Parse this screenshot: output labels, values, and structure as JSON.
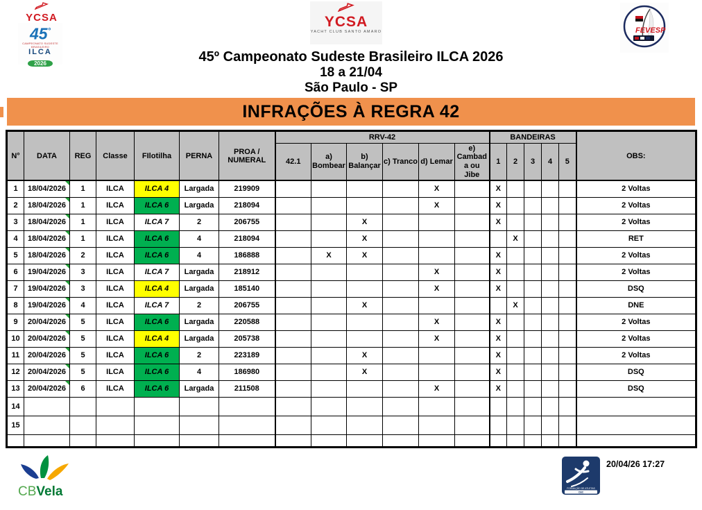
{
  "page": {
    "logos": {
      "ycsa_small": {
        "name": "YCSA"
      },
      "ilca45": {
        "number": "45",
        "degree": "°",
        "subtitle": "CAMPEONATO SUDESTE BRASILEIRO",
        "class_name": "ILCA",
        "year": "2026"
      },
      "ycsa_center": {
        "name": "YCSA",
        "subtitle": "YACHT CLUB SANTO AMARO"
      },
      "fevesp": {
        "name": "FEVESP"
      },
      "cbvela": {
        "cb": "CB",
        "vela": "Vela"
      },
      "athlete": {
        "line1": "FORMAÇÃO DE ATLETAS",
        "line2": "CBC"
      }
    },
    "title": {
      "line1": "45º Campeonato Sudeste Brasileiro ILCA 2026",
      "line2": "18 a 21/04",
      "line3": "São Paulo - SP"
    },
    "banner": "INFRAÇÕES À REGRA 42",
    "stamp": "20/04/26 17:27"
  },
  "colors": {
    "banner_orange": "#F0914C",
    "header_gray": "#C0C0C0",
    "fleet_green_bg": "#00B050",
    "fleet_green_text": "#FFFF00",
    "fleet_yellow_bg": "#FFFF00",
    "fleet_yellow_text": "#FF0000"
  },
  "table": {
    "columns": {
      "num": "N°",
      "data": "DATA",
      "reg": "REG",
      "classe": "Classe",
      "flotilha": "FIlotilha",
      "perna": "PERNA",
      "proa": "PROA /\nNUMERAL",
      "rrv_group": "RRV-42",
      "rrv": [
        "42.1",
        "a) Bombear",
        "b) Balançar",
        "c) Tranco",
        "d) Lemar",
        "e) Cambada ou Jibe"
      ],
      "bandeiras_group": "BANDEIRAS",
      "bandeiras": [
        "1",
        "2",
        "3",
        "4",
        "5"
      ],
      "obs": "OBS:"
    },
    "rows": [
      {
        "num": "1",
        "data": "18/04/2026",
        "reg": "1",
        "classe": "ILCA",
        "flotilha": "ILCA 4",
        "fleet": "yellow",
        "perna": "Largada",
        "proa": "219909",
        "rrv": [
          "",
          "",
          "",
          "",
          "X",
          ""
        ],
        "flags": [
          "X",
          "",
          "",
          "",
          ""
        ],
        "obs": "2 Voltas"
      },
      {
        "num": "2",
        "data": "18/04/2026",
        "reg": "1",
        "classe": "ILCA",
        "flotilha": "ILCA 6",
        "fleet": "green",
        "perna": "Largada",
        "proa": "218094",
        "rrv": [
          "",
          "",
          "",
          "",
          "X",
          ""
        ],
        "flags": [
          "X",
          "",
          "",
          "",
          ""
        ],
        "obs": "2 Voltas"
      },
      {
        "num": "3",
        "data": "18/04/2026",
        "reg": "1",
        "classe": "ILCA",
        "flotilha": "ILCA 7",
        "fleet": "plain",
        "perna": "2",
        "proa": "206755",
        "rrv": [
          "",
          "",
          "X",
          "",
          "",
          ""
        ],
        "flags": [
          "X",
          "",
          "",
          "",
          ""
        ],
        "obs": "2 Voltas"
      },
      {
        "num": "4",
        "data": "18/04/2026",
        "reg": "1",
        "classe": "ILCA",
        "flotilha": "ILCA 6",
        "fleet": "green",
        "perna": "4",
        "proa": "218094",
        "rrv": [
          "",
          "",
          "X",
          "",
          "",
          ""
        ],
        "flags": [
          "",
          "X",
          "",
          "",
          ""
        ],
        "obs": "RET"
      },
      {
        "num": "5",
        "data": "18/04/2026",
        "reg": "2",
        "classe": "ILCA",
        "flotilha": "ILCA 6",
        "fleet": "green",
        "perna": "4",
        "proa": "186888",
        "rrv": [
          "",
          "X",
          "X",
          "",
          "",
          ""
        ],
        "flags": [
          "X",
          "",
          "",
          "",
          ""
        ],
        "obs": "2 Voltas"
      },
      {
        "num": "6",
        "data": "19/04/2026",
        "reg": "3",
        "classe": "ILCA",
        "flotilha": "ILCA 7",
        "fleet": "plain",
        "perna": "Largada",
        "proa": "218912",
        "rrv": [
          "",
          "",
          "",
          "",
          "X",
          ""
        ],
        "flags": [
          "X",
          "",
          "",
          "",
          ""
        ],
        "obs": "2 Voltas"
      },
      {
        "num": "7",
        "data": "19/04/2026",
        "reg": "3",
        "classe": "ILCA",
        "flotilha": "ILCA 4",
        "fleet": "yellow",
        "perna": "Largada",
        "proa": "185140",
        "rrv": [
          "",
          "",
          "",
          "",
          "X",
          ""
        ],
        "flags": [
          "X",
          "",
          "",
          "",
          ""
        ],
        "obs": "DSQ"
      },
      {
        "num": "8",
        "data": "19/04/2026",
        "reg": "4",
        "classe": "ILCA",
        "flotilha": "ILCA 7",
        "fleet": "plain",
        "perna": "2",
        "proa": "206755",
        "rrv": [
          "",
          "",
          "X",
          "",
          "",
          ""
        ],
        "flags": [
          "",
          "X",
          "",
          "",
          ""
        ],
        "obs": "DNE"
      },
      {
        "num": "9",
        "data": "20/04/2026",
        "reg": "5",
        "classe": "ILCA",
        "flotilha": "ILCA 6",
        "fleet": "green",
        "perna": "Largada",
        "proa": "220588",
        "rrv": [
          "",
          "",
          "",
          "",
          "X",
          ""
        ],
        "flags": [
          "X",
          "",
          "",
          "",
          ""
        ],
        "obs": "2 Voltas"
      },
      {
        "num": "10",
        "data": "20/04/2026",
        "reg": "5",
        "classe": "ILCA",
        "flotilha": "ILCA 4",
        "fleet": "yellow",
        "perna": "Largada",
        "proa": "205738",
        "rrv": [
          "",
          "",
          "",
          "",
          "X",
          ""
        ],
        "flags": [
          "X",
          "",
          "",
          "",
          ""
        ],
        "obs": "2 Voltas"
      },
      {
        "num": "11",
        "data": "20/04/2026",
        "reg": "5",
        "classe": "ILCA",
        "flotilha": "ILCA 6",
        "fleet": "green",
        "perna": "2",
        "proa": "223189",
        "rrv": [
          "",
          "",
          "X",
          "",
          "",
          ""
        ],
        "flags": [
          "X",
          "",
          "",
          "",
          ""
        ],
        "obs": "2 Voltas"
      },
      {
        "num": "12",
        "data": "20/04/2026",
        "reg": "5",
        "classe": "ILCA",
        "flotilha": "ILCA 6",
        "fleet": "green",
        "perna": "4",
        "proa": "186980",
        "rrv": [
          "",
          "",
          "X",
          "",
          "",
          ""
        ],
        "flags": [
          "X",
          "",
          "",
          "",
          ""
        ],
        "obs": "DSQ"
      },
      {
        "num": "13",
        "data": "20/04/2026",
        "reg": "6",
        "classe": "ILCA",
        "flotilha": "ILCA 6",
        "fleet": "green",
        "perna": "Largada",
        "proa": "211508",
        "rrv": [
          "",
          "",
          "",
          "",
          "X",
          ""
        ],
        "flags": [
          "X",
          "",
          "",
          "",
          ""
        ],
        "obs": "DSQ"
      },
      {
        "num": "14",
        "data": "",
        "reg": "",
        "classe": "",
        "flotilha": "",
        "fleet": "",
        "perna": "",
        "proa": "",
        "rrv": [
          "",
          "",
          "",
          "",
          "",
          ""
        ],
        "flags": [
          "",
          "",
          "",
          "",
          ""
        ],
        "obs": ""
      },
      {
        "num": "15",
        "data": "",
        "reg": "",
        "classe": "",
        "flotilha": "",
        "fleet": "",
        "perna": "",
        "proa": "",
        "rrv": [
          "",
          "",
          "",
          "",
          "",
          ""
        ],
        "flags": [
          "",
          "",
          "",
          "",
          ""
        ],
        "obs": ""
      },
      {
        "num": "",
        "data": "",
        "reg": "",
        "classe": "",
        "flotilha": "",
        "fleet": "",
        "perna": "",
        "proa": "",
        "rrv": [
          "",
          "",
          "",
          "",
          "",
          ""
        ],
        "flags": [
          "",
          "",
          "",
          "",
          ""
        ],
        "obs": ""
      }
    ]
  }
}
